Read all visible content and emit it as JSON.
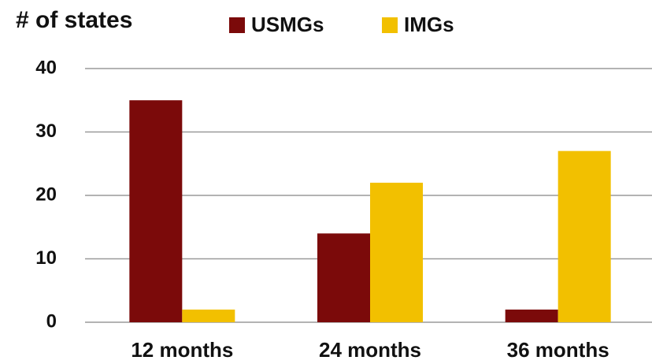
{
  "chart_data": {
    "type": "bar",
    "ylabel": "# of states",
    "categories": [
      "12 months",
      "24 months",
      "36 months"
    ],
    "series": [
      {
        "name": "USMGs",
        "color": "#7b0a0a",
        "values": [
          35,
          14,
          2
        ]
      },
      {
        "name": "IMGs",
        "color": "#f2c000",
        "values": [
          2,
          22,
          27
        ]
      }
    ],
    "ylim": [
      0,
      40
    ],
    "yticks": [
      0,
      10,
      20,
      30,
      40
    ],
    "grid": true,
    "legend": "top"
  }
}
